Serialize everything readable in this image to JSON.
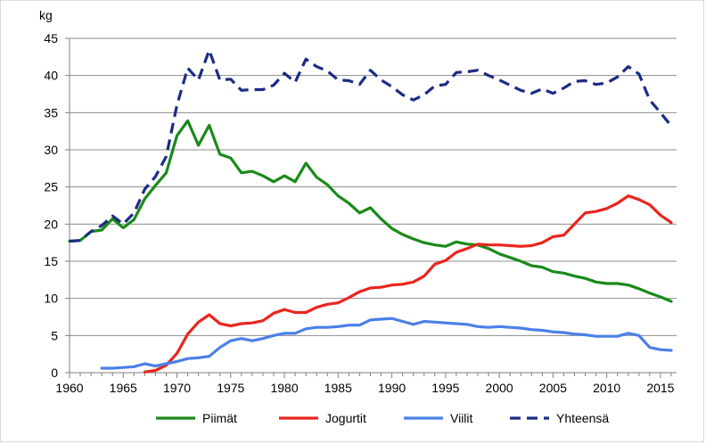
{
  "chart_data": {
    "type": "line",
    "unit_label": "kg",
    "xlim": [
      1960,
      2016.5
    ],
    "ylim": [
      0,
      45
    ],
    "x_ticks": [
      1960,
      1965,
      1970,
      1975,
      1980,
      1985,
      1990,
      1995,
      2000,
      2005,
      2010,
      2015
    ],
    "y_ticks": [
      0,
      5,
      10,
      15,
      20,
      25,
      30,
      35,
      40,
      45
    ],
    "grid": "horizontal",
    "legend_position": "bottom",
    "series": [
      {
        "name": "Piimät",
        "color": "#1a8a1a",
        "dash": "solid",
        "points": [
          [
            1960,
            17.7
          ],
          [
            1961,
            17.8
          ],
          [
            1962,
            19.0
          ],
          [
            1963,
            19.2
          ],
          [
            1964,
            20.7
          ],
          [
            1965,
            19.5
          ],
          [
            1966,
            20.6
          ],
          [
            1967,
            23.4
          ],
          [
            1968,
            25.2
          ],
          [
            1969,
            26.9
          ],
          [
            1970,
            31.9
          ],
          [
            1971,
            33.9
          ],
          [
            1972,
            30.6
          ],
          [
            1973,
            33.3
          ],
          [
            1974,
            29.4
          ],
          [
            1975,
            28.9
          ],
          [
            1976,
            26.9
          ],
          [
            1977,
            27.1
          ],
          [
            1978,
            26.5
          ],
          [
            1979,
            25.7
          ],
          [
            1980,
            26.5
          ],
          [
            1981,
            25.7
          ],
          [
            1982,
            28.2
          ],
          [
            1983,
            26.3
          ],
          [
            1984,
            25.3
          ],
          [
            1985,
            23.8
          ],
          [
            1986,
            22.8
          ],
          [
            1987,
            21.5
          ],
          [
            1988,
            22.2
          ],
          [
            1989,
            20.7
          ],
          [
            1990,
            19.4
          ],
          [
            1991,
            18.6
          ],
          [
            1992,
            18.0
          ],
          [
            1993,
            17.5
          ],
          [
            1994,
            17.2
          ],
          [
            1995,
            17.0
          ],
          [
            1996,
            17.6
          ],
          [
            1997,
            17.3
          ],
          [
            1998,
            17.2
          ],
          [
            1999,
            16.7
          ],
          [
            2000,
            16.0
          ],
          [
            2001,
            15.5
          ],
          [
            2002,
            15.0
          ],
          [
            2003,
            14.4
          ],
          [
            2004,
            14.2
          ],
          [
            2005,
            13.6
          ],
          [
            2006,
            13.4
          ],
          [
            2007,
            13.0
          ],
          [
            2008,
            12.7
          ],
          [
            2009,
            12.2
          ],
          [
            2010,
            12.0
          ],
          [
            2011,
            12.0
          ],
          [
            2012,
            11.8
          ],
          [
            2013,
            11.3
          ],
          [
            2014,
            10.7
          ],
          [
            2015,
            10.2
          ],
          [
            2016,
            9.6
          ]
        ]
      },
      {
        "name": "Jogurtit",
        "color": "#e8261e",
        "dash": "solid",
        "points": [
          [
            1967,
            0.1
          ],
          [
            1968,
            0.3
          ],
          [
            1969,
            1.0
          ],
          [
            1970,
            2.6
          ],
          [
            1971,
            5.2
          ],
          [
            1972,
            6.8
          ],
          [
            1973,
            7.8
          ],
          [
            1974,
            6.6
          ],
          [
            1975,
            6.3
          ],
          [
            1976,
            6.6
          ],
          [
            1977,
            6.7
          ],
          [
            1978,
            7.0
          ],
          [
            1979,
            8.0
          ],
          [
            1980,
            8.5
          ],
          [
            1981,
            8.1
          ],
          [
            1982,
            8.1
          ],
          [
            1983,
            8.8
          ],
          [
            1984,
            9.2
          ],
          [
            1985,
            9.4
          ],
          [
            1986,
            10.1
          ],
          [
            1987,
            10.9
          ],
          [
            1988,
            11.4
          ],
          [
            1989,
            11.5
          ],
          [
            1990,
            11.8
          ],
          [
            1991,
            11.9
          ],
          [
            1992,
            12.2
          ],
          [
            1993,
            13.0
          ],
          [
            1994,
            14.6
          ],
          [
            1995,
            15.1
          ],
          [
            1996,
            16.2
          ],
          [
            1997,
            16.7
          ],
          [
            1998,
            17.3
          ],
          [
            1999,
            17.2
          ],
          [
            2000,
            17.2
          ],
          [
            2001,
            17.1
          ],
          [
            2002,
            17.0
          ],
          [
            2003,
            17.1
          ],
          [
            2004,
            17.5
          ],
          [
            2005,
            18.3
          ],
          [
            2006,
            18.5
          ],
          [
            2007,
            20.0
          ],
          [
            2008,
            21.5
          ],
          [
            2009,
            21.7
          ],
          [
            2010,
            22.1
          ],
          [
            2011,
            22.8
          ],
          [
            2012,
            23.8
          ],
          [
            2013,
            23.3
          ],
          [
            2014,
            22.6
          ],
          [
            2015,
            21.2
          ],
          [
            2016,
            20.2
          ]
        ]
      },
      {
        "name": "Viilit",
        "color": "#4a80e8",
        "dash": "solid",
        "points": [
          [
            1963,
            0.6
          ],
          [
            1964,
            0.6
          ],
          [
            1965,
            0.7
          ],
          [
            1966,
            0.8
          ],
          [
            1967,
            1.2
          ],
          [
            1968,
            0.9
          ],
          [
            1969,
            1.2
          ],
          [
            1970,
            1.5
          ],
          [
            1971,
            1.9
          ],
          [
            1972,
            2.0
          ],
          [
            1973,
            2.2
          ],
          [
            1974,
            3.4
          ],
          [
            1975,
            4.3
          ],
          [
            1976,
            4.6
          ],
          [
            1977,
            4.3
          ],
          [
            1978,
            4.6
          ],
          [
            1979,
            5.0
          ],
          [
            1980,
            5.3
          ],
          [
            1981,
            5.3
          ],
          [
            1982,
            5.9
          ],
          [
            1983,
            6.1
          ],
          [
            1984,
            6.1
          ],
          [
            1985,
            6.2
          ],
          [
            1986,
            6.4
          ],
          [
            1987,
            6.4
          ],
          [
            1988,
            7.1
          ],
          [
            1989,
            7.2
          ],
          [
            1990,
            7.3
          ],
          [
            1991,
            6.9
          ],
          [
            1992,
            6.5
          ],
          [
            1993,
            6.9
          ],
          [
            1994,
            6.8
          ],
          [
            1995,
            6.7
          ],
          [
            1996,
            6.6
          ],
          [
            1997,
            6.5
          ],
          [
            1998,
            6.2
          ],
          [
            1999,
            6.1
          ],
          [
            2000,
            6.2
          ],
          [
            2001,
            6.1
          ],
          [
            2002,
            6.0
          ],
          [
            2003,
            5.8
          ],
          [
            2004,
            5.7
          ],
          [
            2005,
            5.5
          ],
          [
            2006,
            5.4
          ],
          [
            2007,
            5.2
          ],
          [
            2008,
            5.1
          ],
          [
            2009,
            4.9
          ],
          [
            2010,
            4.9
          ],
          [
            2011,
            4.9
          ],
          [
            2012,
            5.3
          ],
          [
            2013,
            5.0
          ],
          [
            2014,
            3.4
          ],
          [
            2015,
            3.1
          ],
          [
            2016,
            3.0
          ]
        ]
      },
      {
        "name": "Yhteensä",
        "color": "#1c2c86",
        "dash": "dashed",
        "points": [
          [
            1960,
            17.7
          ],
          [
            1961,
            17.8
          ],
          [
            1962,
            19.0
          ],
          [
            1963,
            19.8
          ],
          [
            1964,
            21.1
          ],
          [
            1965,
            20.0
          ],
          [
            1966,
            21.5
          ],
          [
            1967,
            24.7
          ],
          [
            1968,
            26.4
          ],
          [
            1969,
            29.1
          ],
          [
            1970,
            36.0
          ],
          [
            1971,
            41.0
          ],
          [
            1972,
            39.4
          ],
          [
            1973,
            43.4
          ],
          [
            1974,
            39.4
          ],
          [
            1975,
            39.5
          ],
          [
            1976,
            38.0
          ],
          [
            1977,
            38.1
          ],
          [
            1978,
            38.1
          ],
          [
            1979,
            38.7
          ],
          [
            1980,
            40.3
          ],
          [
            1981,
            39.1
          ],
          [
            1982,
            42.2
          ],
          [
            1983,
            41.2
          ],
          [
            1984,
            40.6
          ],
          [
            1985,
            39.4
          ],
          [
            1986,
            39.3
          ],
          [
            1987,
            38.8
          ],
          [
            1988,
            40.7
          ],
          [
            1989,
            39.4
          ],
          [
            1990,
            38.5
          ],
          [
            1991,
            37.4
          ],
          [
            1992,
            36.7
          ],
          [
            1993,
            37.4
          ],
          [
            1994,
            38.6
          ],
          [
            1995,
            38.8
          ],
          [
            1996,
            40.4
          ],
          [
            1997,
            40.5
          ],
          [
            1998,
            40.7
          ],
          [
            1999,
            40.0
          ],
          [
            2000,
            39.4
          ],
          [
            2001,
            38.7
          ],
          [
            2002,
            38.0
          ],
          [
            2003,
            37.6
          ],
          [
            2004,
            38.2
          ],
          [
            2005,
            37.6
          ],
          [
            2006,
            38.3
          ],
          [
            2007,
            39.2
          ],
          [
            2008,
            39.3
          ],
          [
            2009,
            38.8
          ],
          [
            2010,
            39.0
          ],
          [
            2011,
            39.8
          ],
          [
            2012,
            41.2
          ],
          [
            2013,
            40.2
          ],
          [
            2014,
            36.7
          ],
          [
            2015,
            35.0
          ],
          [
            2016,
            33.2
          ]
        ]
      }
    ]
  }
}
